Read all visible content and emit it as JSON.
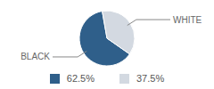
{
  "chart_data": {
    "type": "pie",
    "categories": [
      "BLACK",
      "WHITE"
    ],
    "values": [
      62.5,
      37.5
    ],
    "value_labels": [
      "62.5%",
      "37.5%"
    ],
    "colors": [
      "#2f5f8a",
      "#d3d9e1"
    ]
  }
}
